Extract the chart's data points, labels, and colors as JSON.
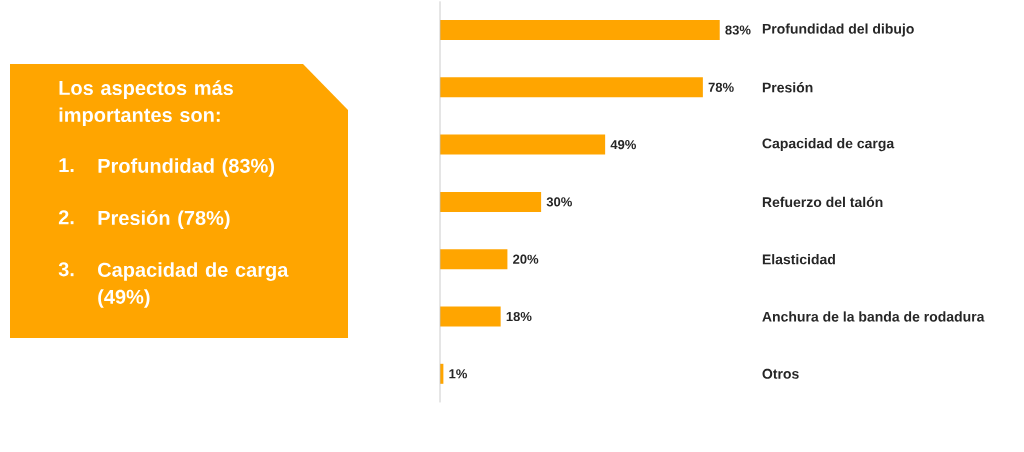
{
  "chart_data": {
    "type": "bar",
    "orientation": "horizontal",
    "categories": [
      "Profundidad del dibujo",
      "Presión",
      "Capacidad de carga",
      "Refuerzo del talón",
      "Elasticidad",
      "Anchura de la banda de rodadura",
      "Otros"
    ],
    "values": [
      83,
      78,
      49,
      30,
      20,
      18,
      1
    ],
    "value_labels": [
      "83%",
      "78%",
      "49%",
      "30%",
      "20%",
      "18%",
      "1%"
    ],
    "color": "#ffa500",
    "annotations": [
      "Los aspectos más importantes son:",
      "1.",
      "Profundidad (83%)",
      "2.",
      "Presión (78%)",
      "3.",
      "Capacidad de carga (49%)"
    ]
  }
}
